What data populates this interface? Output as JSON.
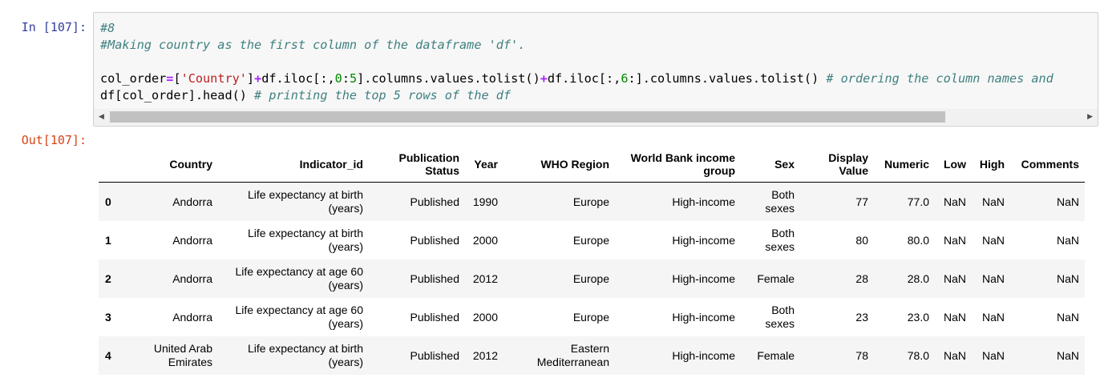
{
  "input_prompt": "In [107]:",
  "code_lines": [
    [
      "#8"
    ],
    [
      "#Making country as the first column of the dataframe 'df'."
    ],
    [],
    [
      "col_order",
      "=",
      "[",
      "'Country'",
      "]",
      "+",
      "df.iloc[:,",
      "0",
      ":",
      "5",
      "].columns.values.tolist()",
      "+",
      "df.iloc[:,",
      "6",
      ":",
      "].columns.values.tolist() ",
      "# ordering the column names and"
    ],
    [
      "df[col_order].head() ",
      "# printing the top 5 rows of the df"
    ]
  ],
  "output_prompt": "Out[107]:",
  "table": {
    "headers": [
      "Country",
      "Indicator_id",
      "Publication Status",
      "Year",
      "WHO Region",
      "World Bank income group",
      "Sex",
      "Display Value",
      "Numeric",
      "Low",
      "High",
      "Comments"
    ],
    "rows": [
      [
        "0",
        "Andorra",
        "Life expectancy at birth (years)",
        "Published",
        "1990",
        "Europe",
        "High-income",
        "Both sexes",
        "77",
        "77.0",
        "NaN",
        "NaN",
        "NaN"
      ],
      [
        "1",
        "Andorra",
        "Life expectancy at birth (years)",
        "Published",
        "2000",
        "Europe",
        "High-income",
        "Both sexes",
        "80",
        "80.0",
        "NaN",
        "NaN",
        "NaN"
      ],
      [
        "2",
        "Andorra",
        "Life expectancy at age 60 (years)",
        "Published",
        "2012",
        "Europe",
        "High-income",
        "Female",
        "28",
        "28.0",
        "NaN",
        "NaN",
        "NaN"
      ],
      [
        "3",
        "Andorra",
        "Life expectancy at age 60 (years)",
        "Published",
        "2000",
        "Europe",
        "High-income",
        "Both sexes",
        "23",
        "23.0",
        "NaN",
        "NaN",
        "NaN"
      ],
      [
        "4",
        "United Arab Emirates",
        "Life expectancy at birth (years)",
        "Published",
        "2012",
        "Eastern Mediterranean",
        "High-income",
        "Female",
        "78",
        "78.0",
        "NaN",
        "NaN",
        "NaN"
      ]
    ]
  }
}
